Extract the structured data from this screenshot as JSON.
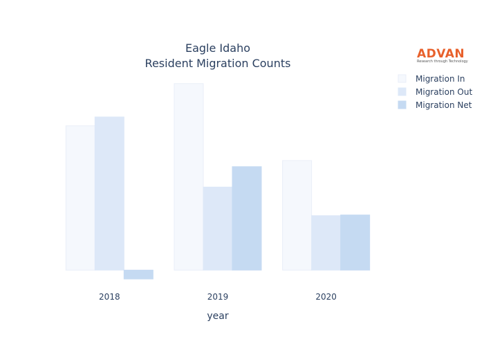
{
  "chart_data": {
    "type": "bar",
    "title_line1": "Eagle Idaho",
    "title_line2": "Resident Migration Counts",
    "xlabel": "year",
    "ylabel": "",
    "categories": [
      "2018",
      "2019",
      "2020"
    ],
    "series": [
      {
        "name": "Migration In",
        "values": [
          2120,
          2740,
          1610
        ],
        "color": "#f5f8fd",
        "stroke": "#e9eef8"
      },
      {
        "name": "Migration Out",
        "values": [
          2250,
          1220,
          800
        ],
        "color": "#dde8f8",
        "stroke": "#dde8f8"
      },
      {
        "name": "Migration Net",
        "values": [
          -130,
          1520,
          810
        ],
        "color": "#c5daf2",
        "stroke": "#c5daf2"
      }
    ],
    "ylim": [
      -200,
      2850
    ],
    "grid": false,
    "legend_position": "top-right"
  },
  "logo": {
    "name": "ADVAN",
    "tagline": "Research through Technology"
  }
}
